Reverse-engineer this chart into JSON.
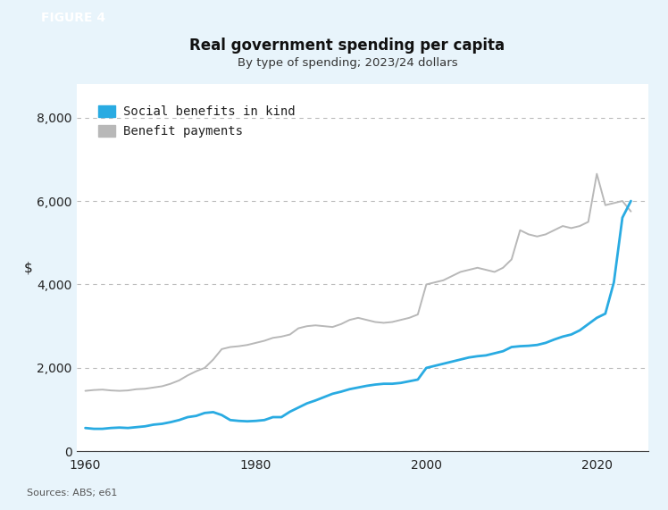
{
  "title": "Real government spending per capita",
  "subtitle": "By type of spending; 2023/24 dollars",
  "ylabel": "$",
  "source": "Sources: ABS; e61",
  "figure_label": "FIGURE 4",
  "outer_bg_color": "#e8f4fb",
  "plot_bg_color": "#ffffff",
  "banner_color": "#29abe2",
  "ylim": [
    0,
    8800
  ],
  "yticks": [
    0,
    2000,
    4000,
    6000,
    8000
  ],
  "xlim": [
    1959,
    2026
  ],
  "xticks": [
    1960,
    1980,
    2000,
    2020
  ],
  "social_benefits_color": "#29abe2",
  "benefit_payments_color": "#b8b8b8",
  "social_benefits": {
    "years": [
      1960,
      1961,
      1962,
      1963,
      1964,
      1965,
      1966,
      1967,
      1968,
      1969,
      1970,
      1971,
      1972,
      1973,
      1974,
      1975,
      1976,
      1977,
      1978,
      1979,
      1980,
      1981,
      1982,
      1983,
      1984,
      1985,
      1986,
      1987,
      1988,
      1989,
      1990,
      1991,
      1992,
      1993,
      1994,
      1995,
      1996,
      1997,
      1998,
      1999,
      2000,
      2001,
      2002,
      2003,
      2004,
      2005,
      2006,
      2007,
      2008,
      2009,
      2010,
      2011,
      2012,
      2013,
      2014,
      2015,
      2016,
      2017,
      2018,
      2019,
      2020,
      2021,
      2022,
      2023,
      2024
    ],
    "values": [
      560,
      540,
      540,
      560,
      570,
      560,
      580,
      600,
      640,
      660,
      700,
      750,
      820,
      850,
      920,
      940,
      870,
      750,
      730,
      720,
      730,
      750,
      820,
      820,
      950,
      1050,
      1150,
      1220,
      1300,
      1380,
      1430,
      1490,
      1530,
      1570,
      1600,
      1620,
      1620,
      1640,
      1680,
      1720,
      2000,
      2050,
      2100,
      2150,
      2200,
      2250,
      2280,
      2300,
      2350,
      2400,
      2500,
      2520,
      2530,
      2550,
      2600,
      2680,
      2750,
      2800,
      2900,
      3050,
      3200,
      3300,
      4050,
      5600,
      6000
    ]
  },
  "benefit_payments": {
    "years": [
      1960,
      1961,
      1962,
      1963,
      1964,
      1965,
      1966,
      1967,
      1968,
      1969,
      1970,
      1971,
      1972,
      1973,
      1974,
      1975,
      1976,
      1977,
      1978,
      1979,
      1980,
      1981,
      1982,
      1983,
      1984,
      1985,
      1986,
      1987,
      1988,
      1989,
      1990,
      1991,
      1992,
      1993,
      1994,
      1995,
      1996,
      1997,
      1998,
      1999,
      2000,
      2001,
      2002,
      2003,
      2004,
      2005,
      2006,
      2007,
      2008,
      2009,
      2010,
      2011,
      2012,
      2013,
      2014,
      2015,
      2016,
      2017,
      2018,
      2019,
      2020,
      2021,
      2022,
      2023,
      2024
    ],
    "values": [
      1450,
      1470,
      1480,
      1460,
      1450,
      1460,
      1490,
      1500,
      1530,
      1560,
      1620,
      1700,
      1820,
      1920,
      2000,
      2200,
      2450,
      2500,
      2520,
      2550,
      2600,
      2650,
      2720,
      2750,
      2800,
      2950,
      3000,
      3020,
      3000,
      2980,
      3050,
      3150,
      3200,
      3150,
      3100,
      3080,
      3100,
      3150,
      3200,
      3280,
      4000,
      4050,
      4100,
      4200,
      4300,
      4350,
      4400,
      4350,
      4300,
      4400,
      4600,
      5300,
      5200,
      5150,
      5200,
      5300,
      5400,
      5350,
      5400,
      5500,
      6650,
      5900,
      5950,
      6000,
      5750
    ]
  }
}
